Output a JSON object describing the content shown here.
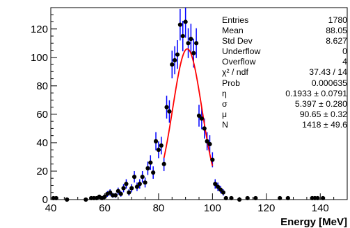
{
  "chart_data": {
    "type": "scatter",
    "xlabel": "Energy [MeV]",
    "ylabel": "",
    "xlim": [
      40,
      150
    ],
    "ylim": [
      0,
      135
    ],
    "x_ticks": [
      40,
      60,
      80,
      100,
      120,
      140
    ],
    "y_ticks": [
      0,
      20,
      40,
      60,
      80,
      100,
      120
    ],
    "grid": false,
    "colors": {
      "points": "#000000",
      "fit": "#ff0000",
      "errors": "#0000ff"
    },
    "series": [
      {
        "type": "points_with_errors",
        "x": [
          41,
          42,
          46,
          53,
          55,
          56,
          57,
          58,
          59,
          60,
          61,
          62,
          63,
          64,
          65,
          66,
          67,
          68,
          69,
          70,
          71,
          72,
          73,
          74,
          75,
          76,
          77,
          78,
          79,
          80,
          81,
          82,
          83,
          84,
          85,
          86,
          87,
          88,
          89,
          90,
          91,
          92,
          93,
          94,
          95,
          96,
          97,
          98,
          99,
          100,
          101,
          102,
          103,
          104,
          105,
          107,
          110,
          113,
          116,
          125,
          128,
          137,
          138,
          139,
          141
        ],
        "y": [
          1,
          1,
          0,
          0,
          1,
          1,
          1,
          2,
          1,
          2,
          4,
          5,
          3,
          3,
          6,
          4,
          8,
          11,
          5,
          8,
          16,
          9,
          11,
          16,
          12,
          22,
          26,
          19,
          41,
          35,
          38,
          25,
          65,
          62,
          95,
          98,
          102,
          123,
          115,
          125,
          110,
          113,
          103,
          110,
          59,
          57,
          50,
          41,
          39,
          28,
          11,
          9,
          7,
          5,
          1,
          1,
          0,
          1,
          1,
          1,
          1,
          1,
          1,
          1,
          1
        ]
      },
      {
        "type": "fit_curve",
        "function": "gaussian",
        "color": "#ff0000",
        "fit_range": [
          82,
          100
        ],
        "sigma": 5.397,
        "mu": 90.65,
        "peak": 106
      }
    ],
    "stats_box": [
      {
        "name": "Entries",
        "value": "1780"
      },
      {
        "name": "Mean",
        "value": "88.05"
      },
      {
        "name": "Std Dev",
        "value": "8.627"
      },
      {
        "name": "Underflow",
        "value": "0"
      },
      {
        "name": "Overflow",
        "value": "4"
      },
      {
        "name": "χ² / ndf",
        "value": "37.43 / 14"
      },
      {
        "name": "Prob",
        "value": "0.000635"
      },
      {
        "name": "η",
        "value": "0.1933 ± 0.0791"
      },
      {
        "name": "σ",
        "value": "5.397 ± 0.280"
      },
      {
        "name": "μ",
        "value": "90.65 ± 0.32"
      },
      {
        "name": "N",
        "value": "1418 ± 49.6"
      }
    ]
  }
}
